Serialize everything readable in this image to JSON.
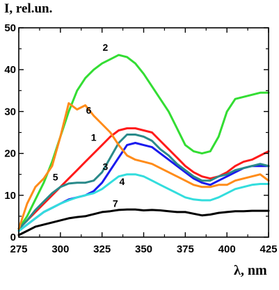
{
  "chart_data": {
    "type": "line",
    "title": "",
    "xlabel": "λ, nm",
    "ylabel": "I, rel.un.",
    "xlim": [
      275,
      425
    ],
    "ylim": [
      0,
      50
    ],
    "x_ticks": [
      "275",
      "300",
      "325",
      "350",
      "375",
      "400",
      "425"
    ],
    "y_ticks": [
      "0",
      "10",
      "20",
      "30",
      "40",
      "50"
    ],
    "grid": false,
    "legend": "none (curves labeled inline with numbers)",
    "series": [
      {
        "name": "1",
        "color": "#ff1a1a",
        "x": [
          275,
          280,
          285,
          290,
          295,
          300,
          305,
          310,
          315,
          320,
          325,
          330,
          335,
          340,
          345,
          350,
          355,
          360,
          365,
          370,
          375,
          380,
          385,
          390,
          395,
          400,
          405,
          410,
          415,
          420,
          425
        ],
        "y": [
          2,
          4,
          6,
          8,
          10,
          12,
          14,
          16,
          18,
          20,
          22,
          24,
          25.5,
          26,
          26,
          25.5,
          25,
          23,
          21,
          19,
          17,
          15.5,
          14.5,
          14,
          14.5,
          15.5,
          17,
          18,
          18.5,
          19.5,
          20.5
        ],
        "label_at": [
          320,
          23
        ]
      },
      {
        "name": "2",
        "color": "#33dd33",
        "x": [
          275,
          280,
          285,
          290,
          295,
          300,
          305,
          310,
          315,
          320,
          325,
          330,
          335,
          340,
          345,
          350,
          355,
          360,
          365,
          370,
          375,
          380,
          385,
          390,
          395,
          400,
          405,
          410,
          415,
          420,
          425
        ],
        "y": [
          2,
          5,
          9,
          13,
          18,
          24,
          30,
          35,
          38,
          40,
          41.5,
          42.5,
          43.5,
          43,
          41.5,
          39,
          36,
          33,
          30,
          26,
          22,
          20.5,
          20,
          20.5,
          24,
          30,
          33,
          33.5,
          34,
          34.5,
          34.5
        ],
        "label_at": [
          327,
          44.5
        ]
      },
      {
        "name": "3",
        "color": "#1a1aee",
        "x": [
          275,
          280,
          285,
          290,
          295,
          300,
          305,
          310,
          315,
          320,
          325,
          330,
          335,
          340,
          345,
          350,
          355,
          360,
          365,
          370,
          375,
          380,
          385,
          390,
          395,
          400,
          405,
          410,
          415,
          420,
          425
        ],
        "y": [
          1.5,
          3,
          4.5,
          6,
          7,
          8,
          9,
          9.5,
          10,
          11,
          13,
          16,
          19,
          22,
          22.5,
          22,
          21.5,
          20,
          18.5,
          17,
          15.5,
          14,
          13,
          12.5,
          13.5,
          14.5,
          15.5,
          16.5,
          17,
          17,
          17
        ],
        "label_at": [
          327,
          16
        ]
      },
      {
        "name": "4",
        "color": "#33dddd",
        "x": [
          275,
          280,
          285,
          290,
          295,
          300,
          305,
          310,
          315,
          320,
          325,
          330,
          335,
          340,
          345,
          350,
          355,
          360,
          365,
          370,
          375,
          380,
          385,
          390,
          395,
          400,
          405,
          410,
          415,
          420,
          425
        ],
        "y": [
          1.5,
          3,
          4.5,
          6,
          7,
          8,
          8.8,
          9.5,
          10,
          10.5,
          11.5,
          13,
          14.5,
          15,
          15,
          14.5,
          13.5,
          12.5,
          11.5,
          10.5,
          9.5,
          9,
          8.8,
          8.8,
          9.5,
          10.5,
          11.5,
          12,
          12.5,
          12.7,
          12.7
        ],
        "label_at": [
          337,
          12.5
        ]
      },
      {
        "name": "5",
        "color": "#2a8a8a",
        "x": [
          275,
          280,
          285,
          290,
          295,
          300,
          305,
          310,
          315,
          320,
          325,
          330,
          335,
          340,
          345,
          350,
          355,
          360,
          365,
          370,
          375,
          380,
          385,
          390,
          395,
          400,
          405,
          410,
          415,
          420,
          425
        ],
        "y": [
          2,
          4,
          6.5,
          8.5,
          10.5,
          12,
          12.8,
          13,
          13,
          13.5,
          15.5,
          19,
          22.5,
          24.5,
          24.5,
          24,
          23,
          21,
          19.5,
          17.5,
          16,
          14.5,
          13.5,
          13.5,
          14.5,
          15,
          16,
          16.5,
          17,
          17.5,
          17
        ],
        "label_at": [
          297,
          13.5
        ]
      },
      {
        "name": "6",
        "color": "#ff8c1a",
        "x": [
          275,
          280,
          285,
          290,
          295,
          300,
          305,
          310,
          315,
          320,
          325,
          330,
          335,
          340,
          345,
          350,
          355,
          360,
          365,
          370,
          375,
          380,
          385,
          390,
          395,
          400,
          405,
          410,
          415,
          420,
          425
        ],
        "y": [
          2,
          8,
          12,
          14,
          17,
          24,
          32,
          30.5,
          31.5,
          29,
          27,
          25,
          22,
          19.5,
          18.5,
          18,
          17.5,
          16.5,
          15.5,
          14.5,
          13.5,
          12.5,
          12,
          12,
          12.5,
          12.5,
          13.5,
          14,
          14.5,
          15,
          13.5
        ],
        "label_at": [
          317,
          29.5
        ]
      },
      {
        "name": "7",
        "color": "#000000",
        "x": [
          275,
          280,
          285,
          290,
          295,
          300,
          305,
          310,
          315,
          320,
          325,
          330,
          335,
          340,
          345,
          350,
          355,
          360,
          365,
          370,
          375,
          380,
          385,
          390,
          395,
          400,
          405,
          410,
          415,
          420,
          425
        ],
        "y": [
          0.5,
          1.5,
          2.5,
          3,
          3.5,
          4,
          4.5,
          4.8,
          5,
          5.5,
          6,
          6.2,
          6.5,
          6.6,
          6.6,
          6.4,
          6.5,
          6.4,
          6.2,
          6,
          6,
          5.6,
          5.2,
          5.4,
          5.8,
          6,
          6.2,
          6.2,
          6.3,
          6.3,
          6.3
        ],
        "label_at": [
          333,
          7.2
        ]
      }
    ]
  }
}
